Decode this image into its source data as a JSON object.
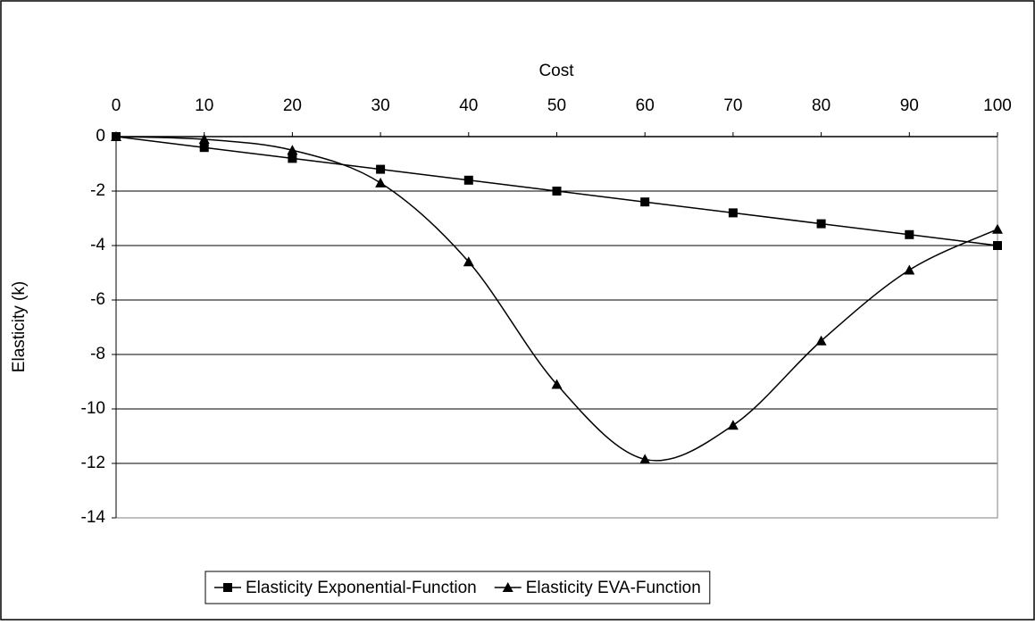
{
  "chart_data": {
    "type": "line",
    "x_label": "Cost",
    "y_label": "Elasticity (k)",
    "x": [
      0,
      10,
      20,
      30,
      40,
      50,
      60,
      70,
      80,
      90,
      100
    ],
    "series": [
      {
        "name": "Elasticity Exponential-Function",
        "color": "#000000",
        "marker": "square",
        "smooth": false,
        "values": [
          0,
          -0.4,
          -0.8,
          -1.2,
          -1.6,
          -2.0,
          -2.4,
          -2.8,
          -3.2,
          -3.6,
          -4.0
        ]
      },
      {
        "name": "Elasticity EVA-Function",
        "color": "#000000",
        "marker": "triangle",
        "smooth": true,
        "values": [
          0,
          -0.1,
          -0.5,
          -1.7,
          -4.6,
          -9.1,
          -11.85,
          -10.6,
          -7.5,
          -4.9,
          -3.4
        ]
      }
    ],
    "xlim": [
      0,
      100
    ],
    "xticks": [
      0,
      10,
      20,
      30,
      40,
      50,
      60,
      70,
      80,
      90,
      100
    ],
    "ylim": [
      -14,
      0
    ],
    "yticks": [
      0,
      -2,
      -4,
      -6,
      -8,
      -10,
      -12,
      -14
    ],
    "x_axis_position": "top",
    "grid": true,
    "legend": "bottom"
  }
}
